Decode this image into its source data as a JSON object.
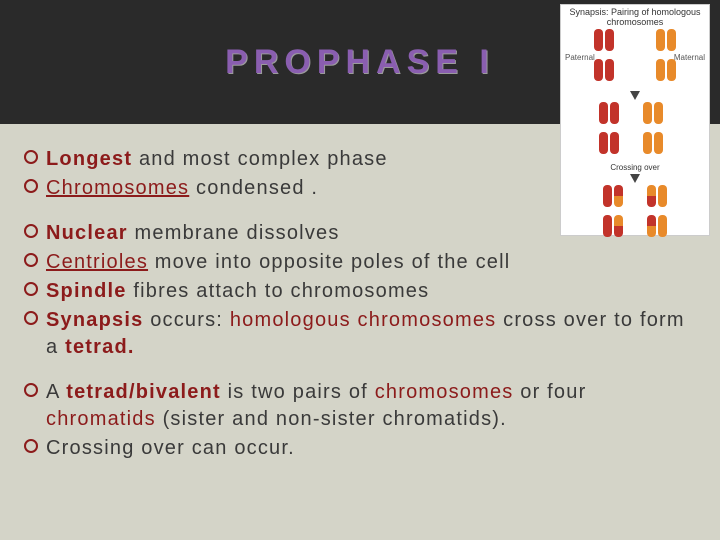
{
  "title": "PROPHASE I",
  "diagram": {
    "heading": "Synapsis: Pairing of homologous chromosomes",
    "label_left": "Paternal",
    "label_right": "Maternal",
    "caption": "Crossing over",
    "colors": {
      "paternal": "#c2332a",
      "maternal": "#e88a2a",
      "bg": "#ffffff"
    }
  },
  "groups": [
    {
      "items": [
        {
          "segments": [
            {
              "t": "Longest",
              "s": "red bold"
            },
            {
              "t": " and most complex phase",
              "s": ""
            }
          ]
        },
        {
          "segments": [
            {
              "t": "Chromosomes",
              "s": "red under"
            },
            {
              "t": " condensed .",
              "s": ""
            }
          ]
        }
      ]
    },
    {
      "items": [
        {
          "segments": [
            {
              "t": "Nuclear",
              "s": "red bold"
            },
            {
              "t": " membrane dissolves",
              "s": ""
            }
          ]
        },
        {
          "segments": [
            {
              "t": "Centrioles",
              "s": "red under"
            },
            {
              "t": " move into opposite poles of the cell",
              "s": ""
            }
          ]
        },
        {
          "segments": [
            {
              "t": "Spindle",
              "s": "red bold"
            },
            {
              "t": " fibres attach to chromosomes",
              "s": ""
            }
          ]
        },
        {
          "segments": [
            {
              "t": "Synapsis",
              "s": "red bold"
            },
            {
              "t": " occurs: ",
              "s": ""
            },
            {
              "t": "homologous chromosomes",
              "s": "red"
            },
            {
              "t": " cross over to form a ",
              "s": ""
            },
            {
              "t": "tetrad.",
              "s": "red bold"
            }
          ],
          "wrap": true
        }
      ]
    },
    {
      "items": [
        {
          "segments": [
            {
              "t": "A ",
              "s": ""
            },
            {
              "t": "tetrad/bivalent",
              "s": "red bold"
            },
            {
              "t": " is two pairs of ",
              "s": ""
            },
            {
              "t": "chromosomes",
              "s": "red"
            },
            {
              "t": " or four ",
              "s": ""
            },
            {
              "t": "chromatids",
              "s": "red"
            },
            {
              "t": " (sister and non-sister chromatids).",
              "s": ""
            }
          ],
          "wrap": true
        },
        {
          "segments": [
            {
              "t": "Crossing over can occur.",
              "s": ""
            }
          ]
        }
      ]
    }
  ]
}
